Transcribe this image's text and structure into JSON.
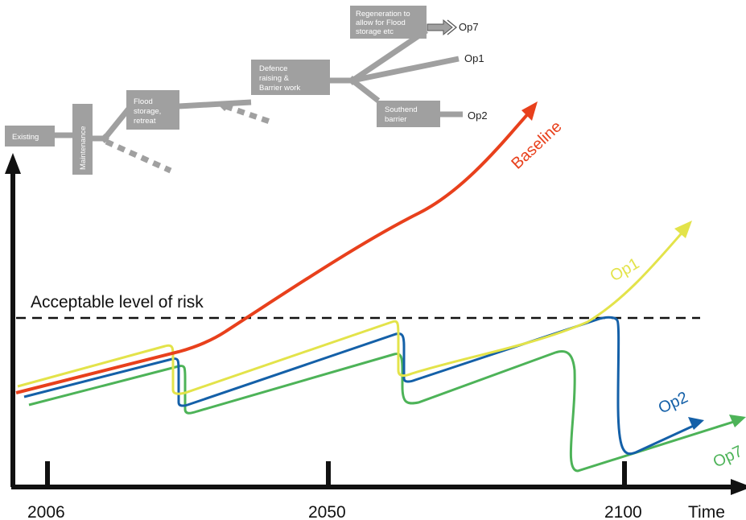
{
  "tree": {
    "existing": "Existing",
    "maintenance": "Maintenance",
    "flood_storage": [
      "Flood",
      "storage,",
      "retreat"
    ],
    "defence_raising": [
      "Defence",
      "raising &",
      "Barrier work"
    ],
    "regeneration": [
      "Regeneration to",
      "allow for Flood",
      "storage etc"
    ],
    "southend_barrier": [
      "Southend",
      "barrier"
    ],
    "op7": "Op7",
    "op1": "Op1",
    "op2": "Op2"
  },
  "risk_line_label": "Acceptable level of risk",
  "axis": {
    "x_label": "Time",
    "ticks": [
      "2006",
      "2050",
      "2100"
    ]
  },
  "curves": {
    "baseline": {
      "label": "Baseline",
      "color": "#e8401c"
    },
    "op1": {
      "label": "Op1",
      "color": "#e3e34a"
    },
    "op2": {
      "label": "Op2",
      "color": "#1460a8"
    },
    "op7": {
      "label": "Op7",
      "color": "#4db358"
    }
  },
  "colors": {
    "node_fill": "#a0a0a0",
    "branch": "#a0a0a0",
    "axis": "#111111"
  }
}
